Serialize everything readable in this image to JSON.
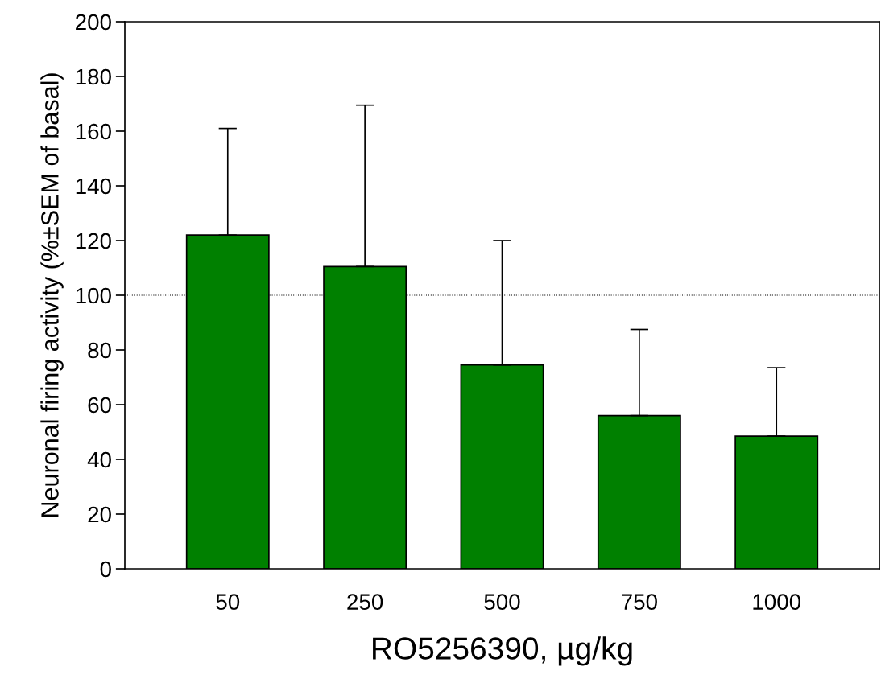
{
  "chart_data": {
    "type": "bar",
    "xlabel": "RO5256390, µg/kg",
    "ylabel": "Neuronal firing activity (%±SEM of basal)",
    "categories": [
      "50",
      "250",
      "500",
      "750",
      "1000"
    ],
    "values": [
      122,
      110.5,
      74.5,
      56,
      48.5
    ],
    "errors": [
      [
        122,
        161
      ],
      [
        110.5,
        169.5
      ],
      [
        74.5,
        120
      ],
      [
        56,
        87.5
      ],
      [
        48.5,
        73.5
      ]
    ],
    "color": "#008000",
    "ylim": [
      0,
      200
    ],
    "yticks": [
      0,
      20,
      40,
      60,
      80,
      100,
      120,
      140,
      160,
      180,
      200
    ],
    "ref_lines": [
      {
        "axis": "y",
        "value": 100,
        "color": "#000000",
        "line_style": "dotted"
      }
    ],
    "grid": false,
    "legend": false
  }
}
